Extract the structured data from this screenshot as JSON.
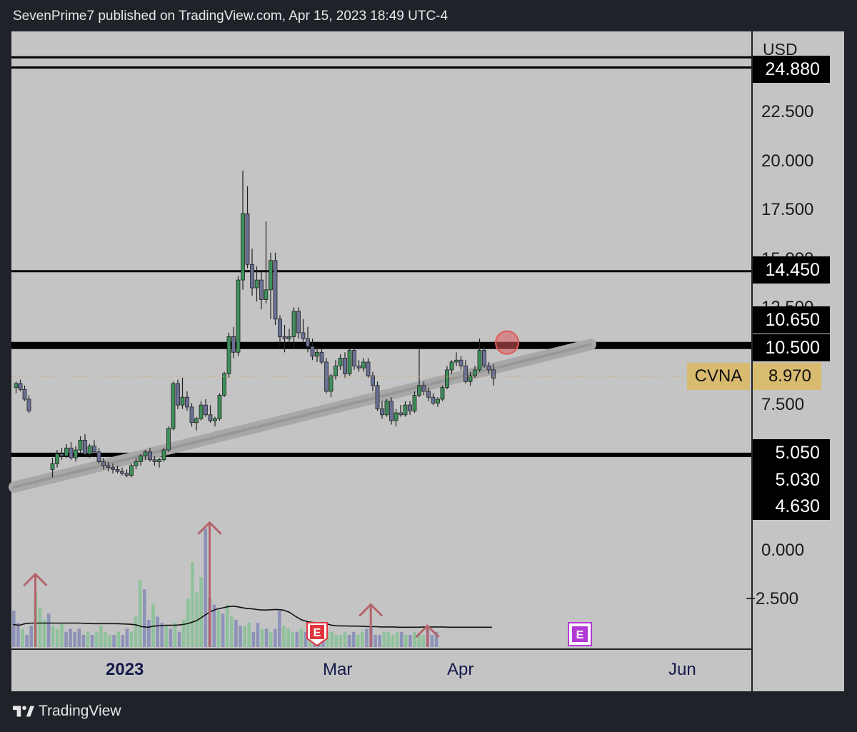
{
  "header": {
    "published": "SevenPrime7 published on TradingView.com, Apr 15, 2023 18:49 UTC-4"
  },
  "footer": {
    "brand": "TradingView"
  },
  "colors": {
    "background": "#1f2329",
    "chart_bg": "#c4c4c4",
    "up": "#3d8f5a",
    "down": "#6a7196",
    "vol_up": "#8fc29c",
    "vol_down": "#8d93b8",
    "arrow": "#b5646a",
    "label_gold": "#d8bb6e",
    "trend_channel": "#9f9f9f"
  },
  "axis": {
    "currency": "USD",
    "last_ticker": "CVNA",
    "last_price": "8.970"
  },
  "chart_data": {
    "type": "candlestick",
    "title": "",
    "ylim": [
      -4.5,
      26
    ],
    "y_ticks": [
      "22.500",
      "20.000",
      "17.500",
      "15.000",
      "12.500",
      "7.500",
      "0.000",
      "−2.500"
    ],
    "x_tick_labels": [
      {
        "label": "2023",
        "bold": true
      },
      {
        "label": "Mar",
        "bold": false
      },
      {
        "label": "Apr",
        "bold": false
      },
      {
        "label": "Jun",
        "bold": false
      }
    ],
    "price_levels": [
      {
        "price": 24.88,
        "label": "24.880",
        "thickness": 3
      },
      {
        "price": 14.45,
        "label": "14.450",
        "thickness": 3
      },
      {
        "price": 10.65,
        "label": "10.650",
        "thickness": 10
      },
      {
        "price": 10.5,
        "label": "10.500",
        "thickness": 0
      },
      {
        "price": 5.05,
        "label": "5.050",
        "thickness": 6
      },
      {
        "price": 5.03,
        "label": "5.030",
        "thickness": 4
      },
      {
        "price": 4.63,
        "label": "4.630",
        "thickness": 0
      }
    ],
    "extra_level": {
      "price": 25.4,
      "thickness": 3
    },
    "ohlc": [
      [
        8.5,
        8.8,
        8.2,
        8.7
      ],
      [
        8.7,
        8.9,
        8.3,
        8.4
      ],
      [
        8.4,
        8.6,
        7.8,
        7.9
      ],
      [
        7.9,
        8.1,
        7.2,
        7.3
      ],
      [
        4.3,
        4.9,
        3.9,
        4.6
      ],
      [
        4.6,
        5.3,
        4.4,
        5.1
      ],
      [
        5.1,
        5.4,
        4.8,
        5.0
      ],
      [
        5.0,
        5.6,
        4.9,
        5.4
      ],
      [
        5.4,
        5.7,
        4.8,
        4.9
      ],
      [
        4.9,
        5.5,
        4.7,
        5.3
      ],
      [
        5.3,
        6.0,
        5.1,
        5.8
      ],
      [
        5.8,
        6.1,
        5.0,
        5.1
      ],
      [
        5.1,
        5.6,
        4.9,
        5.5
      ],
      [
        5.5,
        5.8,
        5.1,
        5.2
      ],
      [
        5.2,
        5.4,
        4.6,
        4.7
      ],
      [
        4.7,
        4.9,
        4.3,
        4.5
      ],
      [
        4.5,
        4.7,
        4.2,
        4.4
      ],
      [
        4.4,
        4.6,
        4.1,
        4.3
      ],
      [
        4.3,
        4.5,
        4.1,
        4.2
      ],
      [
        4.2,
        4.4,
        4.0,
        4.1
      ],
      [
        4.1,
        4.3,
        3.9,
        4.0
      ],
      [
        4.0,
        4.6,
        3.9,
        4.5
      ],
      [
        4.5,
        4.9,
        4.3,
        4.7
      ],
      [
        4.7,
        5.1,
        4.5,
        5.0
      ],
      [
        5.0,
        5.3,
        4.8,
        5.2
      ],
      [
        5.2,
        5.4,
        4.7,
        4.8
      ],
      [
        4.8,
        5.0,
        4.5,
        4.7
      ],
      [
        4.7,
        4.9,
        4.4,
        4.8
      ],
      [
        4.8,
        5.4,
        4.7,
        5.3
      ],
      [
        5.3,
        6.5,
        5.2,
        6.4
      ],
      [
        6.4,
        8.8,
        6.3,
        8.7
      ],
      [
        8.7,
        8.9,
        7.4,
        7.6
      ],
      [
        7.6,
        9.0,
        7.4,
        8.0
      ],
      [
        8.0,
        8.3,
        7.3,
        7.5
      ],
      [
        7.5,
        7.7,
        6.5,
        6.7
      ],
      [
        6.7,
        7.0,
        6.3,
        6.9
      ],
      [
        6.9,
        7.8,
        6.8,
        7.6
      ],
      [
        7.6,
        7.9,
        7.0,
        7.1
      ],
      [
        7.1,
        7.6,
        6.7,
        6.8
      ],
      [
        6.8,
        7.0,
        6.5,
        6.9
      ],
      [
        6.9,
        8.2,
        6.8,
        8.1
      ],
      [
        8.1,
        9.3,
        8.0,
        9.2
      ],
      [
        9.2,
        11.3,
        9.0,
        11.1
      ],
      [
        11.1,
        11.6,
        10.0,
        10.3
      ],
      [
        10.3,
        14.2,
        10.1,
        14.0
      ],
      [
        14.0,
        19.6,
        13.5,
        17.4
      ],
      [
        17.4,
        18.8,
        14.6,
        14.8
      ],
      [
        14.8,
        15.6,
        13.2,
        13.6
      ],
      [
        13.6,
        14.7,
        12.9,
        14.0
      ],
      [
        14.0,
        14.5,
        12.5,
        13.0
      ],
      [
        13.0,
        17.0,
        12.8,
        13.5
      ],
      [
        13.5,
        15.4,
        12.0,
        15.0
      ],
      [
        15.0,
        15.4,
        11.7,
        12.0
      ],
      [
        12.0,
        12.2,
        10.6,
        11.1
      ],
      [
        11.1,
        11.7,
        10.3,
        11.0
      ],
      [
        11.0,
        11.5,
        10.6,
        11.1
      ],
      [
        11.1,
        12.6,
        10.5,
        12.4
      ],
      [
        12.4,
        12.6,
        11.0,
        11.3
      ],
      [
        11.3,
        12.0,
        10.8,
        11.0
      ],
      [
        11.0,
        11.6,
        10.3,
        10.6
      ],
      [
        10.6,
        11.0,
        9.9,
        10.1
      ],
      [
        10.1,
        10.6,
        9.8,
        10.3
      ],
      [
        10.3,
        10.5,
        9.7,
        9.8
      ],
      [
        9.8,
        10.0,
        8.2,
        8.3
      ],
      [
        8.3,
        9.2,
        8.0,
        9.1
      ],
      [
        9.1,
        9.9,
        8.9,
        9.6
      ],
      [
        9.6,
        10.2,
        9.4,
        10.0
      ],
      [
        10.0,
        10.3,
        9.0,
        9.2
      ],
      [
        9.2,
        10.5,
        9.1,
        10.4
      ],
      [
        10.4,
        10.6,
        9.4,
        9.6
      ],
      [
        9.6,
        9.9,
        9.3,
        9.5
      ],
      [
        9.5,
        10.0,
        9.3,
        9.8
      ],
      [
        9.8,
        10.0,
        9.0,
        9.1
      ],
      [
        9.1,
        9.3,
        8.3,
        8.6
      ],
      [
        8.6,
        8.8,
        7.3,
        7.4
      ],
      [
        7.4,
        7.8,
        6.9,
        7.1
      ],
      [
        7.1,
        7.9,
        7.0,
        7.8
      ],
      [
        7.8,
        8.0,
        6.6,
        6.8
      ],
      [
        6.8,
        7.4,
        6.5,
        7.2
      ],
      [
        7.2,
        7.6,
        7.0,
        7.1
      ],
      [
        7.1,
        7.8,
        7.0,
        7.6
      ],
      [
        7.6,
        7.8,
        7.1,
        7.3
      ],
      [
        7.3,
        8.3,
        7.2,
        8.1
      ],
      [
        8.1,
        10.5,
        8.0,
        8.6
      ],
      [
        8.6,
        8.8,
        8.1,
        8.3
      ],
      [
        8.3,
        8.5,
        7.8,
        8.0
      ],
      [
        8.0,
        8.2,
        7.6,
        7.7
      ],
      [
        7.7,
        8.0,
        7.5,
        7.9
      ],
      [
        7.9,
        8.6,
        7.8,
        8.5
      ],
      [
        8.5,
        9.6,
        8.4,
        9.4
      ],
      [
        9.4,
        9.9,
        9.2,
        9.8
      ],
      [
        9.8,
        10.3,
        9.6,
        9.9
      ],
      [
        9.9,
        10.1,
        9.4,
        9.6
      ],
      [
        9.6,
        9.9,
        8.7,
        8.8
      ],
      [
        8.8,
        9.3,
        8.6,
        9.1
      ],
      [
        9.1,
        9.6,
        9.0,
        9.4
      ],
      [
        9.4,
        11.0,
        9.3,
        10.4
      ],
      [
        10.4,
        10.6,
        9.5,
        9.6
      ],
      [
        9.6,
        9.8,
        9.2,
        9.4
      ],
      [
        9.4,
        9.7,
        8.6,
        8.97
      ]
    ],
    "volume_bars": [
      [
        6.0,
        0
      ],
      [
        4.0,
        0
      ],
      [
        3.0,
        1
      ],
      [
        2.0,
        0
      ],
      [
        3.5,
        0
      ],
      [
        9.0,
        1
      ],
      [
        6.5,
        1
      ],
      [
        4.5,
        1
      ],
      [
        5.5,
        0
      ],
      [
        3.5,
        1
      ],
      [
        3.0,
        1
      ],
      [
        4.0,
        1
      ],
      [
        2.5,
        0
      ],
      [
        3.0,
        0
      ],
      [
        2.5,
        0
      ],
      [
        3.0,
        0
      ],
      [
        2.0,
        0
      ],
      [
        2.5,
        1
      ],
      [
        2.0,
        0
      ],
      [
        2.5,
        1
      ],
      [
        3.5,
        1
      ],
      [
        2.5,
        1
      ],
      [
        2.0,
        1
      ],
      [
        2.0,
        0
      ],
      [
        2.5,
        1
      ],
      [
        2.0,
        0
      ],
      [
        3.0,
        0
      ],
      [
        2.5,
        1
      ],
      [
        5.0,
        1
      ],
      [
        11.0,
        1
      ],
      [
        9.5,
        0
      ],
      [
        4.5,
        0
      ],
      [
        7.0,
        1
      ],
      [
        5.0,
        0
      ],
      [
        4.0,
        0
      ],
      [
        3.5,
        1
      ],
      [
        3.0,
        0
      ],
      [
        4.0,
        1
      ],
      [
        2.5,
        0
      ],
      [
        4.5,
        1
      ],
      [
        8.0,
        1
      ],
      [
        14.0,
        1
      ],
      [
        9.0,
        1
      ],
      [
        11.5,
        1
      ],
      [
        19.5,
        0
      ],
      [
        8.0,
        0
      ],
      [
        7.0,
        0
      ],
      [
        6.0,
        1
      ],
      [
        5.5,
        0
      ],
      [
        7.0,
        1
      ],
      [
        5.0,
        1
      ],
      [
        4.5,
        0
      ],
      [
        3.5,
        0
      ],
      [
        3.5,
        1
      ],
      [
        4.0,
        1
      ],
      [
        2.5,
        0
      ],
      [
        4.0,
        0
      ],
      [
        3.0,
        1
      ],
      [
        3.0,
        0
      ],
      [
        2.5,
        1
      ],
      [
        3.0,
        0
      ],
      [
        6.0,
        0
      ],
      [
        3.5,
        1
      ],
      [
        3.0,
        1
      ],
      [
        2.5,
        1
      ],
      [
        2.5,
        0
      ],
      [
        3.0,
        1
      ],
      [
        2.5,
        0
      ],
      [
        2.0,
        1
      ],
      [
        2.5,
        0
      ],
      [
        2.0,
        0
      ],
      [
        3.0,
        0
      ],
      [
        2.5,
        1
      ],
      [
        2.5,
        1
      ],
      [
        2.0,
        1
      ],
      [
        2.0,
        1
      ],
      [
        2.5,
        1
      ],
      [
        2.0,
        0
      ],
      [
        2.5,
        0
      ],
      [
        2.0,
        1
      ],
      [
        2.5,
        1
      ],
      [
        3.0,
        0
      ],
      [
        3.5,
        0
      ],
      [
        2.0,
        0
      ],
      [
        2.0,
        0
      ],
      [
        2.5,
        1
      ],
      [
        2.5,
        1
      ],
      [
        2.0,
        1
      ],
      [
        2.5,
        1
      ],
      [
        2.5,
        0
      ],
      [
        2.0,
        1
      ],
      [
        2.0,
        0
      ],
      [
        2.5,
        1
      ],
      [
        2.0,
        1
      ],
      [
        2.0,
        1
      ],
      [
        3.5,
        0
      ],
      [
        2.0,
        0
      ],
      [
        2.5,
        0
      ]
    ],
    "volume_ma": [
      2.5,
      2.2,
      2.8,
      3.0,
      3.0,
      3.0,
      3.0,
      3.0,
      3.0,
      3.0,
      3.0,
      3.0,
      2.9,
      2.8,
      2.8,
      2.8,
      2.8,
      2.8,
      2.7,
      2.6,
      2.4,
      1.7,
      1.5,
      1.9,
      2.1,
      2.2,
      2.2,
      2.3,
      2.6,
      3.2,
      4.0,
      5.5,
      7.0,
      8.0,
      8.5,
      9.0,
      9.2,
      8.8,
      8.4,
      8.2,
      7.9,
      7.8,
      7.9,
      8.0,
      7.8,
      7.0,
      5.5,
      4.2,
      3.5,
      3.2,
      3.1,
      2.8,
      2.2,
      2.0,
      2.0,
      1.9,
      1.9,
      1.8,
      1.7,
      1.7,
      1.6,
      1.6,
      1.6,
      1.5,
      1.5,
      1.5,
      1.5,
      1.6,
      1.6,
      1.6,
      1.6,
      1.5,
      1.5,
      1.5,
      1.5,
      1.5,
      1.5,
      1.5,
      1.5
    ],
    "volume_arrows": [
      [
        5,
        12.0
      ],
      [
        45,
        20.5
      ],
      [
        82,
        7.0
      ],
      [
        95,
        3.5
      ]
    ],
    "earnings_markers": [
      {
        "type": "past",
        "text": "E"
      },
      {
        "type": "upcoming",
        "text": "E"
      }
    ],
    "trend_channel": {
      "start": [
        0,
        3.4
      ],
      "end": [
        148,
        10.7
      ],
      "band_width": 0.35
    },
    "marker_circle": {
      "bar_index": 102,
      "price": 10.65
    }
  }
}
